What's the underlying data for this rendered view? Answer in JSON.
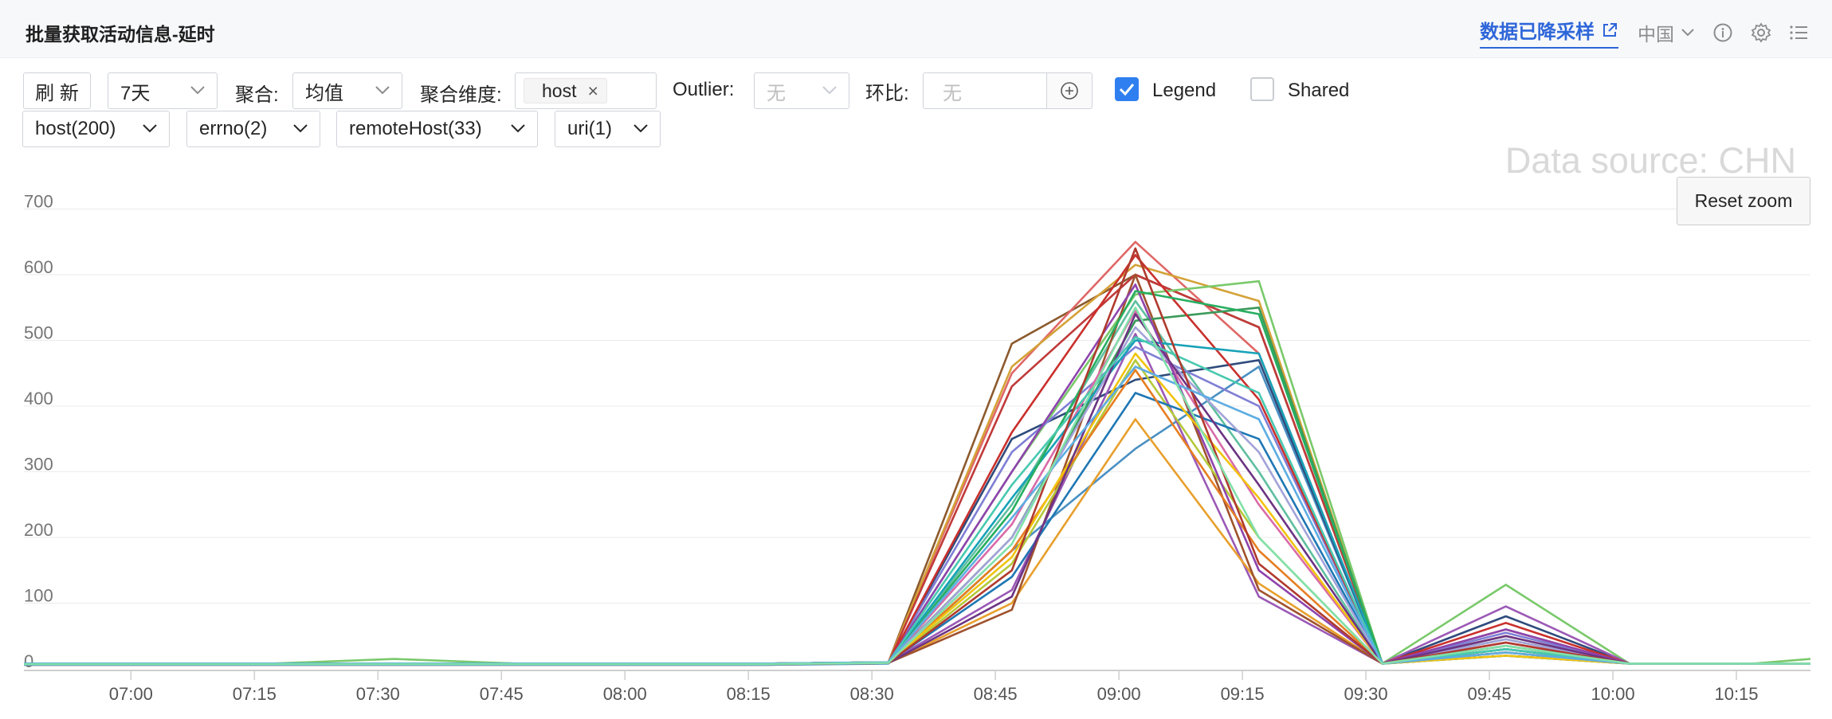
{
  "header": {
    "title": "批量获取活动信息-延时",
    "downsample_label": "数据已降采样",
    "region": "中国"
  },
  "toolbar": {
    "refresh_label": "刷 新",
    "range_value": "7天",
    "agg_label": "聚合:",
    "agg_value": "均值",
    "agg_dim_label": "聚合维度:",
    "agg_dim_tag": "host",
    "outlier_label": "Outlier:",
    "outlier_value": "无",
    "ratio_label": "环比:",
    "ratio_placeholder": "无",
    "legend_label": "Legend",
    "legend_checked": true,
    "shared_label": "Shared",
    "shared_checked": false
  },
  "filters": [
    "host(200)",
    "errno(2)",
    "remoteHost(33)",
    "uri(1)"
  ],
  "chart_overlay": {
    "watermark": "Data source: CHN",
    "reset_zoom_label": "Reset zoom"
  },
  "chart_data": {
    "type": "line",
    "x_ticks": [
      "07:00",
      "07:15",
      "07:30",
      "07:45",
      "08:00",
      "08:15",
      "08:30",
      "08:45",
      "09:00",
      "09:15",
      "09:30",
      "09:45",
      "10:00",
      "10:15"
    ],
    "x_domain_minutes_label": "06:47 - 10:24",
    "x_points": [
      "06:47",
      "07:02",
      "07:17",
      "07:32",
      "07:47",
      "08:02",
      "08:17",
      "08:32",
      "08:47",
      "09:02",
      "09:17",
      "09:32",
      "09:47",
      "10:02",
      "10:17",
      "10:24"
    ],
    "y_ticks": [
      0,
      100,
      200,
      300,
      400,
      500,
      600,
      700
    ],
    "ylim": [
      0,
      740
    ],
    "grid": true,
    "series_count_note": "",
    "series": [
      {
        "color": "#8c5a2e",
        "values": [
          8,
          8,
          8,
          8,
          8,
          8,
          8,
          10,
          495,
          600,
          520,
          8,
          60,
          8,
          8,
          8
        ]
      },
      {
        "color": "#e06767",
        "values": [
          7,
          7,
          7,
          7,
          7,
          7,
          7,
          10,
          450,
          650,
          480,
          8,
          40,
          8,
          8,
          8
        ]
      },
      {
        "color": "#d4a237",
        "values": [
          8,
          8,
          8,
          8,
          8,
          8,
          8,
          10,
          460,
          615,
          560,
          8,
          50,
          8,
          8,
          8
        ]
      },
      {
        "color": "#c03a3a",
        "values": [
          6,
          6,
          6,
          6,
          6,
          6,
          6,
          9,
          430,
          600,
          520,
          8,
          30,
          8,
          8,
          8
        ]
      },
      {
        "color": "#7ac96b",
        "values": [
          8,
          8,
          8,
          15,
          8,
          8,
          8,
          10,
          300,
          570,
          590,
          8,
          128,
          8,
          8,
          15
        ]
      },
      {
        "color": "#4a90c2",
        "values": [
          6,
          6,
          6,
          6,
          6,
          6,
          6,
          8,
          180,
          335,
          460,
          8,
          20,
          8,
          8,
          8
        ]
      },
      {
        "color": "#2f4b7c",
        "values": [
          7,
          7,
          7,
          7,
          7,
          7,
          7,
          9,
          350,
          440,
          470,
          8,
          80,
          8,
          8,
          8
        ]
      },
      {
        "color": "#9b59b6",
        "values": [
          8,
          8,
          8,
          8,
          8,
          8,
          8,
          10,
          120,
          510,
          110,
          8,
          95,
          8,
          8,
          8
        ]
      },
      {
        "color": "#e89f2c",
        "values": [
          7,
          7,
          7,
          7,
          7,
          7,
          7,
          9,
          100,
          380,
          130,
          8,
          35,
          8,
          8,
          8
        ]
      },
      {
        "color": "#5fbf9f",
        "values": [
          8,
          8,
          8,
          8,
          8,
          8,
          8,
          10,
          250,
          560,
          300,
          8,
          45,
          8,
          8,
          8
        ]
      },
      {
        "color": "#a0522d",
        "values": [
          7,
          7,
          7,
          7,
          7,
          7,
          7,
          9,
          90,
          600,
          120,
          8,
          25,
          8,
          8,
          8
        ]
      },
      {
        "color": "#3a9a5a",
        "values": [
          8,
          8,
          8,
          8,
          8,
          8,
          8,
          10,
          200,
          530,
          550,
          8,
          30,
          8,
          8,
          8
        ]
      },
      {
        "color": "#7f7fd5",
        "values": [
          8,
          8,
          8,
          8,
          8,
          8,
          8,
          10,
          330,
          490,
          400,
          8,
          55,
          8,
          8,
          8
        ]
      },
      {
        "color": "#b5c93a",
        "values": [
          7,
          7,
          7,
          7,
          7,
          7,
          7,
          9,
          160,
          470,
          200,
          8,
          20,
          8,
          8,
          8
        ]
      },
      {
        "color": "#d96ba8",
        "values": [
          8,
          8,
          8,
          8,
          8,
          8,
          8,
          10,
          220,
          545,
          250,
          8,
          40,
          8,
          8,
          8
        ]
      },
      {
        "color": "#c9302c",
        "values": [
          7,
          7,
          7,
          7,
          7,
          7,
          7,
          9,
          360,
          630,
          410,
          8,
          70,
          8,
          8,
          8
        ]
      },
      {
        "color": "#1f77b4",
        "values": [
          8,
          8,
          8,
          8,
          8,
          8,
          8,
          10,
          140,
          420,
          350,
          8,
          20,
          8,
          8,
          8
        ]
      },
      {
        "color": "#17a2b8",
        "values": [
          7,
          7,
          7,
          7,
          7,
          7,
          7,
          9,
          260,
          500,
          480,
          8,
          30,
          8,
          8,
          8
        ]
      },
      {
        "color": "#8e44ad",
        "values": [
          8,
          8,
          8,
          8,
          8,
          8,
          8,
          10,
          300,
          585,
          150,
          8,
          60,
          8,
          8,
          8
        ]
      },
      {
        "color": "#e67e22",
        "values": [
          7,
          7,
          7,
          7,
          7,
          7,
          7,
          9,
          180,
          455,
          180,
          8,
          25,
          8,
          8,
          8
        ]
      },
      {
        "color": "#27ae60",
        "values": [
          8,
          8,
          8,
          8,
          8,
          8,
          8,
          10,
          240,
          575,
          540,
          8,
          35,
          8,
          8,
          8
        ]
      },
      {
        "color": "#a3a3d9",
        "values": [
          7,
          7,
          7,
          7,
          7,
          7,
          7,
          9,
          200,
          520,
          330,
          8,
          45,
          8,
          8,
          8
        ]
      },
      {
        "color": "#f1c40f",
        "values": [
          8,
          8,
          8,
          8,
          8,
          8,
          8,
          10,
          170,
          480,
          260,
          8,
          20,
          8,
          8,
          8
        ]
      },
      {
        "color": "#6c3483",
        "values": [
          7,
          7,
          7,
          7,
          7,
          7,
          7,
          9,
          110,
          540,
          280,
          8,
          50,
          8,
          8,
          8
        ]
      },
      {
        "color": "#48c9b0",
        "values": [
          8,
          8,
          8,
          8,
          8,
          8,
          8,
          10,
          280,
          505,
          420,
          8,
          30,
          8,
          8,
          8
        ]
      },
      {
        "color": "#b03a2e",
        "values": [
          7,
          7,
          7,
          7,
          7,
          7,
          7,
          9,
          150,
          640,
          160,
          8,
          40,
          8,
          8,
          8
        ]
      },
      {
        "color": "#5dade2",
        "values": [
          8,
          8,
          8,
          8,
          8,
          8,
          8,
          10,
          230,
          460,
          380,
          8,
          25,
          8,
          8,
          8
        ]
      },
      {
        "color": "#82e0aa",
        "values": [
          7,
          7,
          7,
          7,
          7,
          7,
          7,
          9,
          190,
          550,
          200,
          8,
          35,
          8,
          8,
          8
        ]
      }
    ]
  }
}
